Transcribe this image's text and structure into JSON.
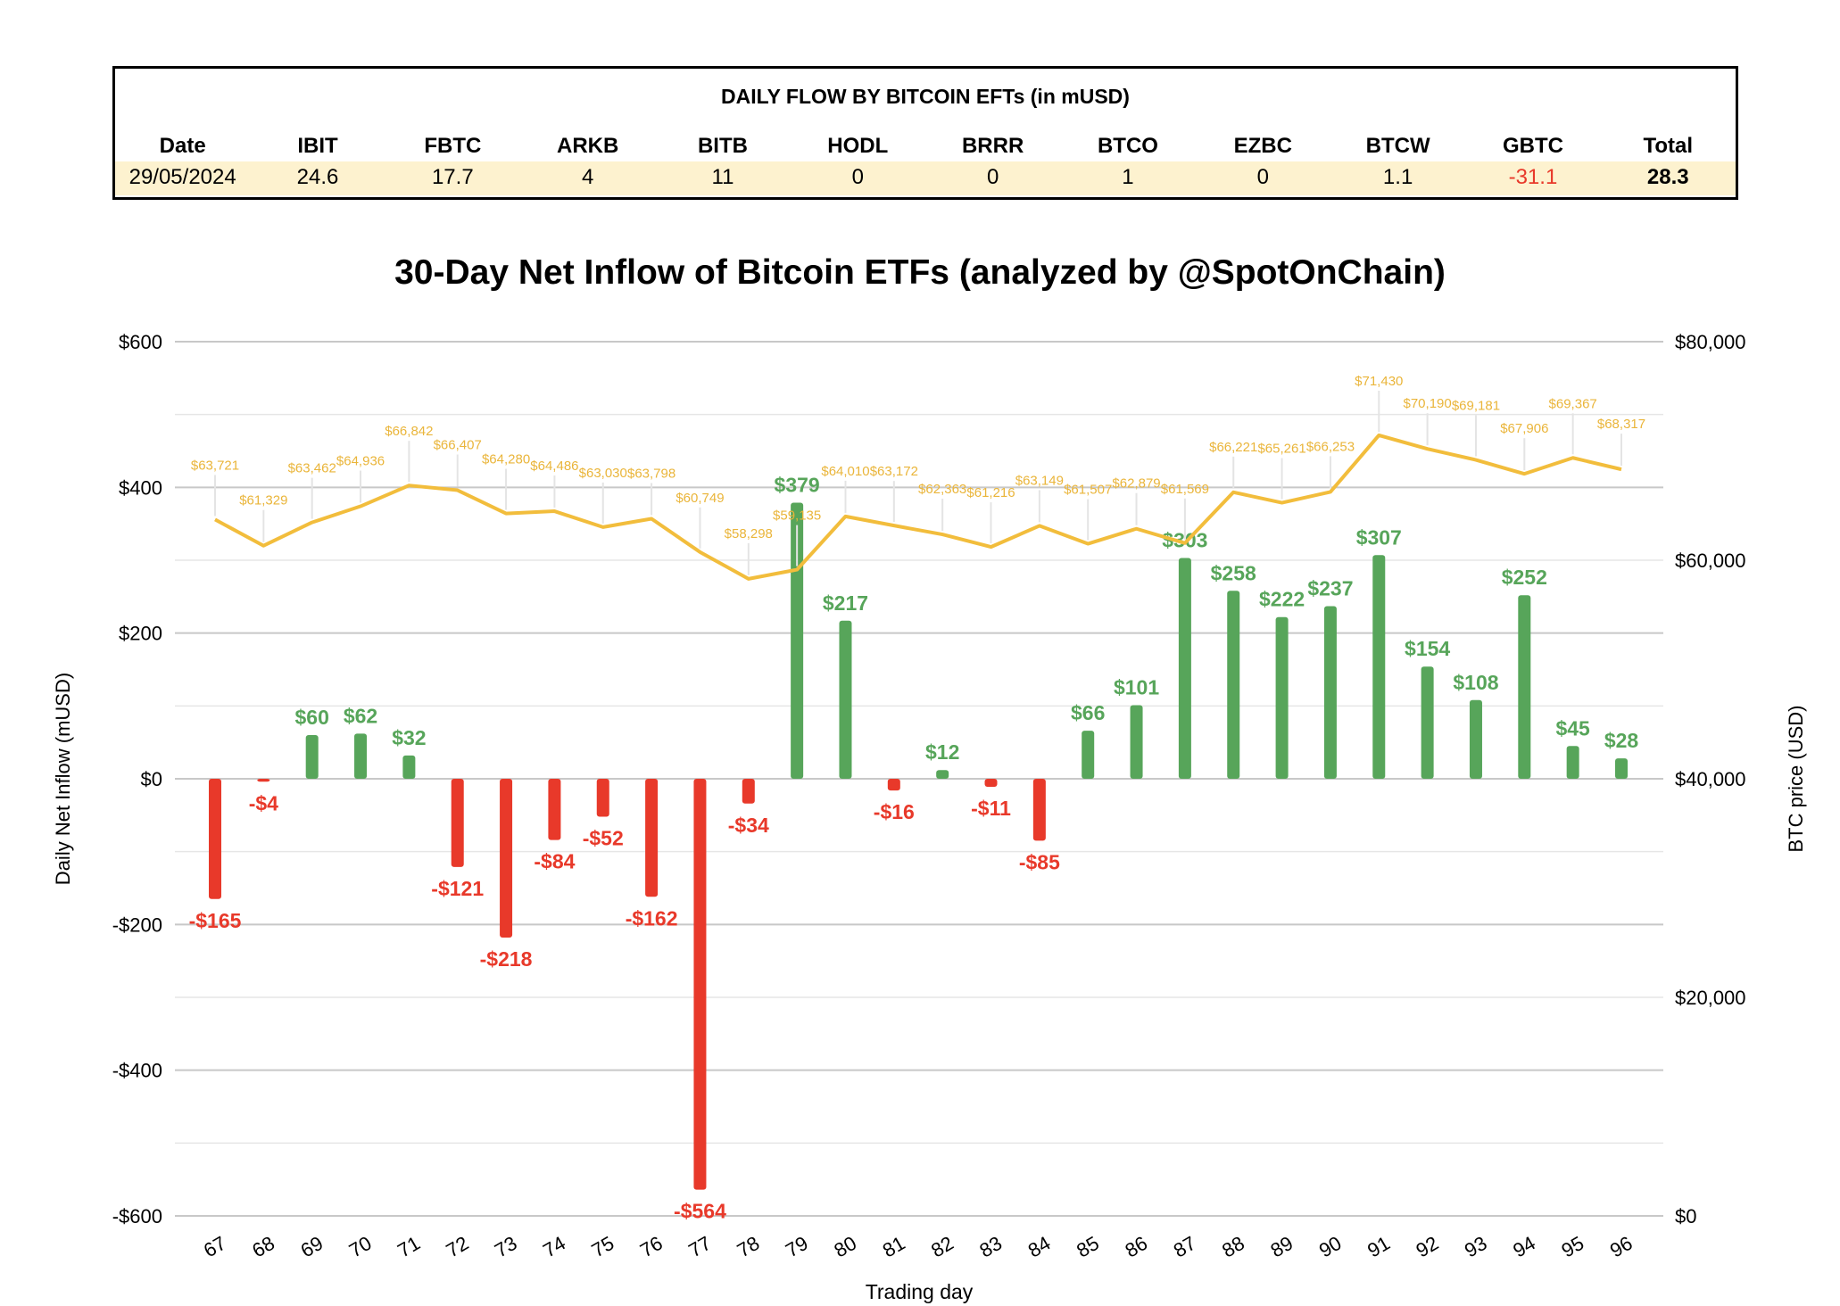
{
  "table": {
    "title": "DAILY FLOW BY BITCOIN EFTs (in mUSD)",
    "headers": [
      "Date",
      "IBIT",
      "FBTC",
      "ARKB",
      "BITB",
      "HODL",
      "BRRR",
      "BTCO",
      "EZBC",
      "BTCW",
      "GBTC",
      "Total"
    ],
    "values": [
      "29/05/2024",
      "24.6",
      "17.7",
      "4",
      "11",
      "0",
      "0",
      "1",
      "0",
      "1.1",
      "-31.1",
      "28.3"
    ]
  },
  "chart_data": {
    "type": "bar+line",
    "title": "30-Day Net Inflow of Bitcoin ETFs (analyzed by @SpotOnChain)",
    "xlabel": "Trading day",
    "ylabel": "Daily Net Inflow (mUSD)",
    "y2label": "BTC price (USD)",
    "ylim": [
      -600,
      600
    ],
    "y2lim": [
      0,
      80000
    ],
    "yticks": [
      "$600",
      "$400",
      "$200",
      "$0",
      "-$200",
      "-$400",
      "-$600"
    ],
    "y2ticks": [
      "$80,000",
      "$60,000",
      "$40,000",
      "$20,000",
      "$0"
    ],
    "grid": true,
    "categories": [
      "67",
      "68",
      "69",
      "70",
      "71",
      "72",
      "73",
      "74",
      "75",
      "76",
      "77",
      "78",
      "79",
      "80",
      "81",
      "82",
      "83",
      "84",
      "85",
      "86",
      "87",
      "88",
      "89",
      "90",
      "91",
      "92",
      "93",
      "94",
      "95",
      "96"
    ],
    "flows": [
      -165,
      -4,
      60,
      62,
      32,
      -121,
      -218,
      -84,
      -52,
      -162,
      -564,
      -34,
      379,
      217,
      -16,
      12,
      -11,
      -85,
      66,
      101,
      303,
      258,
      222,
      237,
      307,
      154,
      108,
      252,
      45,
      28
    ],
    "flow_labels": [
      "-$165",
      "-$4",
      "$60",
      "$62",
      "$32",
      "-$121",
      "-$218",
      "-$84",
      "-$52",
      "-$162",
      "-$564",
      "-$34",
      "$379",
      "$217",
      "-$16",
      "$12",
      "-$11",
      "-$85",
      "$66",
      "$101",
      "$303",
      "$258",
      "$222",
      "$237",
      "$307",
      "$154",
      "$108",
      "$252",
      "$45",
      "$28"
    ],
    "prices": [
      63721,
      61329,
      63462,
      64936,
      66842,
      66407,
      64280,
      64486,
      63030,
      63798,
      60749,
      58298,
      59135,
      64010,
      63172,
      62363,
      61216,
      63149,
      61507,
      62879,
      61569,
      66221,
      65261,
      66253,
      71430,
      70190,
      69181,
      67906,
      69367,
      68317
    ],
    "price_labels": [
      "$63,721",
      "$61,329",
      "$63,462",
      "$64,936",
      "$66,842",
      "$66,407",
      "$64,280",
      "$64,486",
      "$63,030",
      "$63,798",
      "$60,749",
      "$58,298",
      "$59,135",
      "$64,010",
      "$63,172",
      "$62,363",
      "$61,216",
      "$63,149",
      "$61,507",
      "$62,879",
      "$61,569",
      "$66,221",
      "$65,261",
      "$66,253",
      "$71,430",
      "$70,190",
      "$69,181",
      "$67,906",
      "$69,367",
      "$68,317"
    ],
    "colors": {
      "positive": "#57a55a",
      "negative": "#e8392a",
      "price": "#f2bd3c"
    }
  }
}
